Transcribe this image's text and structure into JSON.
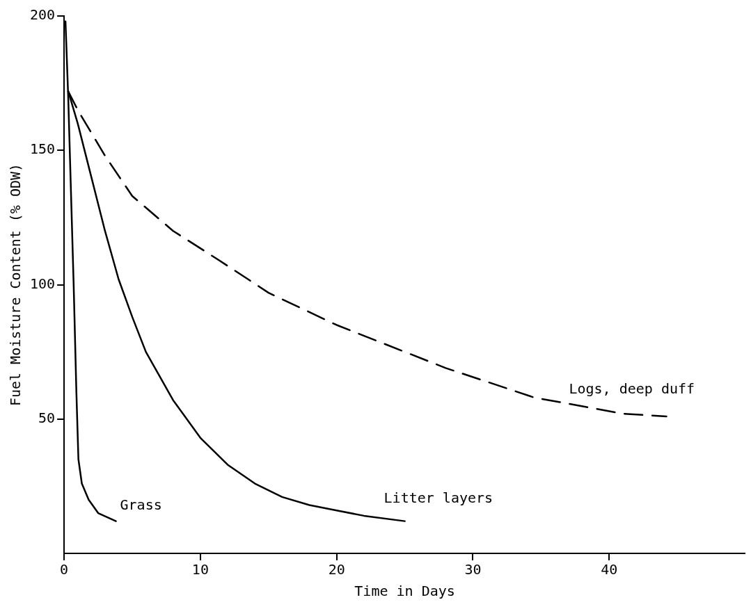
{
  "chart_data": {
    "type": "line",
    "xlabel": "Time in Days",
    "ylabel": "Fuel Moisture Content (% ODW)",
    "xlim": [
      0,
      50
    ],
    "xticks": [
      0,
      10,
      20,
      30,
      40
    ],
    "ylim": [
      0,
      200
    ],
    "yticks": [
      50,
      100,
      150,
      200
    ],
    "grid": false,
    "legend": false,
    "marker": "none",
    "series": [
      {
        "name": "Grass",
        "color": "#000000",
        "line_style": "solid",
        "x": [
          0.1,
          0.3,
          0.7,
          0.9,
          1.05,
          1.3,
          1.8,
          2.5,
          3.8
        ],
        "values": [
          198,
          170,
          100,
          60,
          35,
          26,
          20,
          15,
          12
        ]
      },
      {
        "name": "Litter layers",
        "color": "#000000",
        "line_style": "solid",
        "x": [
          0.3,
          1,
          2,
          3,
          4,
          5,
          6,
          8,
          10,
          12,
          14,
          16,
          18,
          20,
          22,
          25
        ],
        "values": [
          172,
          160,
          140,
          120,
          102,
          88,
          75,
          57,
          43,
          33,
          26,
          21,
          18,
          16,
          14,
          12
        ]
      },
      {
        "name": "Logs, deep duff",
        "color": "#000000",
        "line_style": "dashed",
        "x": [
          0.3,
          1,
          3,
          5,
          8,
          11.4,
          15,
          20,
          25,
          28,
          34.5,
          41,
          44.2
        ],
        "values": [
          172,
          165,
          148,
          133,
          120,
          109,
          97,
          85,
          75,
          69,
          58,
          52,
          51
        ]
      }
    ]
  }
}
